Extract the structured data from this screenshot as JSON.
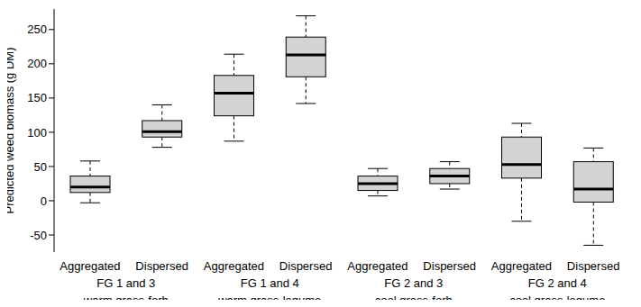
{
  "chart_data": {
    "type": "boxplot",
    "y_label": "Predicted weed biomass (g DM)",
    "categories": [
      "Aggregated",
      "Dispersed",
      "Aggregated",
      "Dispersed",
      "Aggregated",
      "Dispersed",
      "Aggregated",
      "Dispersed"
    ],
    "groups": [
      [
        "FG 1 and 3",
        "warm grass-forb"
      ],
      [
        "FG 1 and 4",
        "warm grass-legume"
      ],
      [
        "FG 2 and 3",
        "cool grass-forb"
      ],
      [
        "FG 2 and 4",
        "cool grass-legume"
      ]
    ],
    "values": [
      {
        "min": -3,
        "q1": 12,
        "median": 20,
        "q3": 36,
        "max": 58
      },
      {
        "min": 78,
        "q1": 93,
        "median": 101,
        "q3": 117,
        "max": 140
      },
      {
        "min": 87,
        "q1": 124,
        "median": 157,
        "q3": 183,
        "max": 214
      },
      {
        "min": 142,
        "q1": 181,
        "median": 213,
        "q3": 239,
        "max": 270
      },
      {
        "min": 7,
        "q1": 15,
        "median": 25,
        "q3": 36,
        "max": 47
      },
      {
        "min": 17,
        "q1": 25,
        "median": 36,
        "q3": 47,
        "max": 57
      },
      {
        "min": -30,
        "q1": 33,
        "median": 53,
        "q3": 93,
        "max": 113
      },
      {
        "min": -65,
        "q1": -2,
        "median": 17,
        "q3": 57,
        "max": 77
      }
    ],
    "color": "#d3d3d3",
    "ylim": [
      -75,
      280
    ],
    "yticks": [
      -50,
      0,
      50,
      100,
      150,
      200,
      250
    ],
    "grid": false
  }
}
